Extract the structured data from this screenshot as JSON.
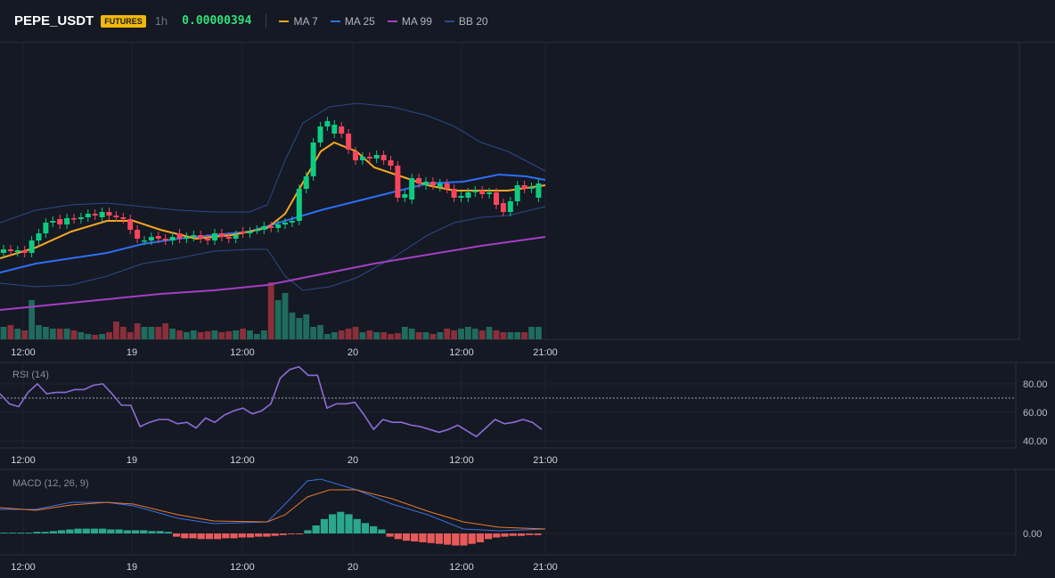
{
  "header": {
    "symbol": "PEPE_USDT",
    "badge": "FUTURES",
    "interval": "1h",
    "price": "0.00000394",
    "legend": [
      {
        "label": "MA 7",
        "color": "#f5a623"
      },
      {
        "label": "MA 25",
        "color": "#2f6ef5"
      },
      {
        "label": "MA 99",
        "color": "#a33fc4"
      },
      {
        "label": "BB 20",
        "color": "#2a4a8a"
      }
    ]
  },
  "colors": {
    "up": "#0ecb81",
    "down": "#f6465d",
    "vol_up": "#1f6b5e",
    "vol_down": "#8a2f3b",
    "rsi": "#8e6bd8",
    "macd": "#3b6fe0",
    "signal": "#e8792f",
    "hist_up": "#2aa88e",
    "hist_down": "#e85a5a"
  },
  "xaxis": {
    "labels": [
      "12:00",
      "19",
      "12:00",
      "20",
      "12:00",
      "21:00"
    ]
  },
  "rsi": {
    "title": "RSI (14)",
    "ticks": [
      "80.00",
      "60.00",
      "40.00"
    ],
    "values": [
      73,
      66,
      64,
      74,
      80,
      73,
      74,
      74,
      76,
      76,
      79,
      80,
      73,
      65,
      65,
      50,
      53,
      55,
      55,
      52,
      53,
      49,
      56,
      53,
      58,
      61,
      63,
      59,
      61,
      66,
      84,
      90,
      92,
      86,
      86,
      63,
      66,
      66,
      67,
      58,
      48,
      55,
      53,
      53,
      51,
      50,
      48,
      46,
      48,
      51,
      47,
      43,
      49,
      55,
      52,
      53,
      55,
      53,
      48
    ],
    "threshold": 70
  },
  "macd": {
    "title": "MACD (12, 26, 9)",
    "tick": "0.00"
  }
}
